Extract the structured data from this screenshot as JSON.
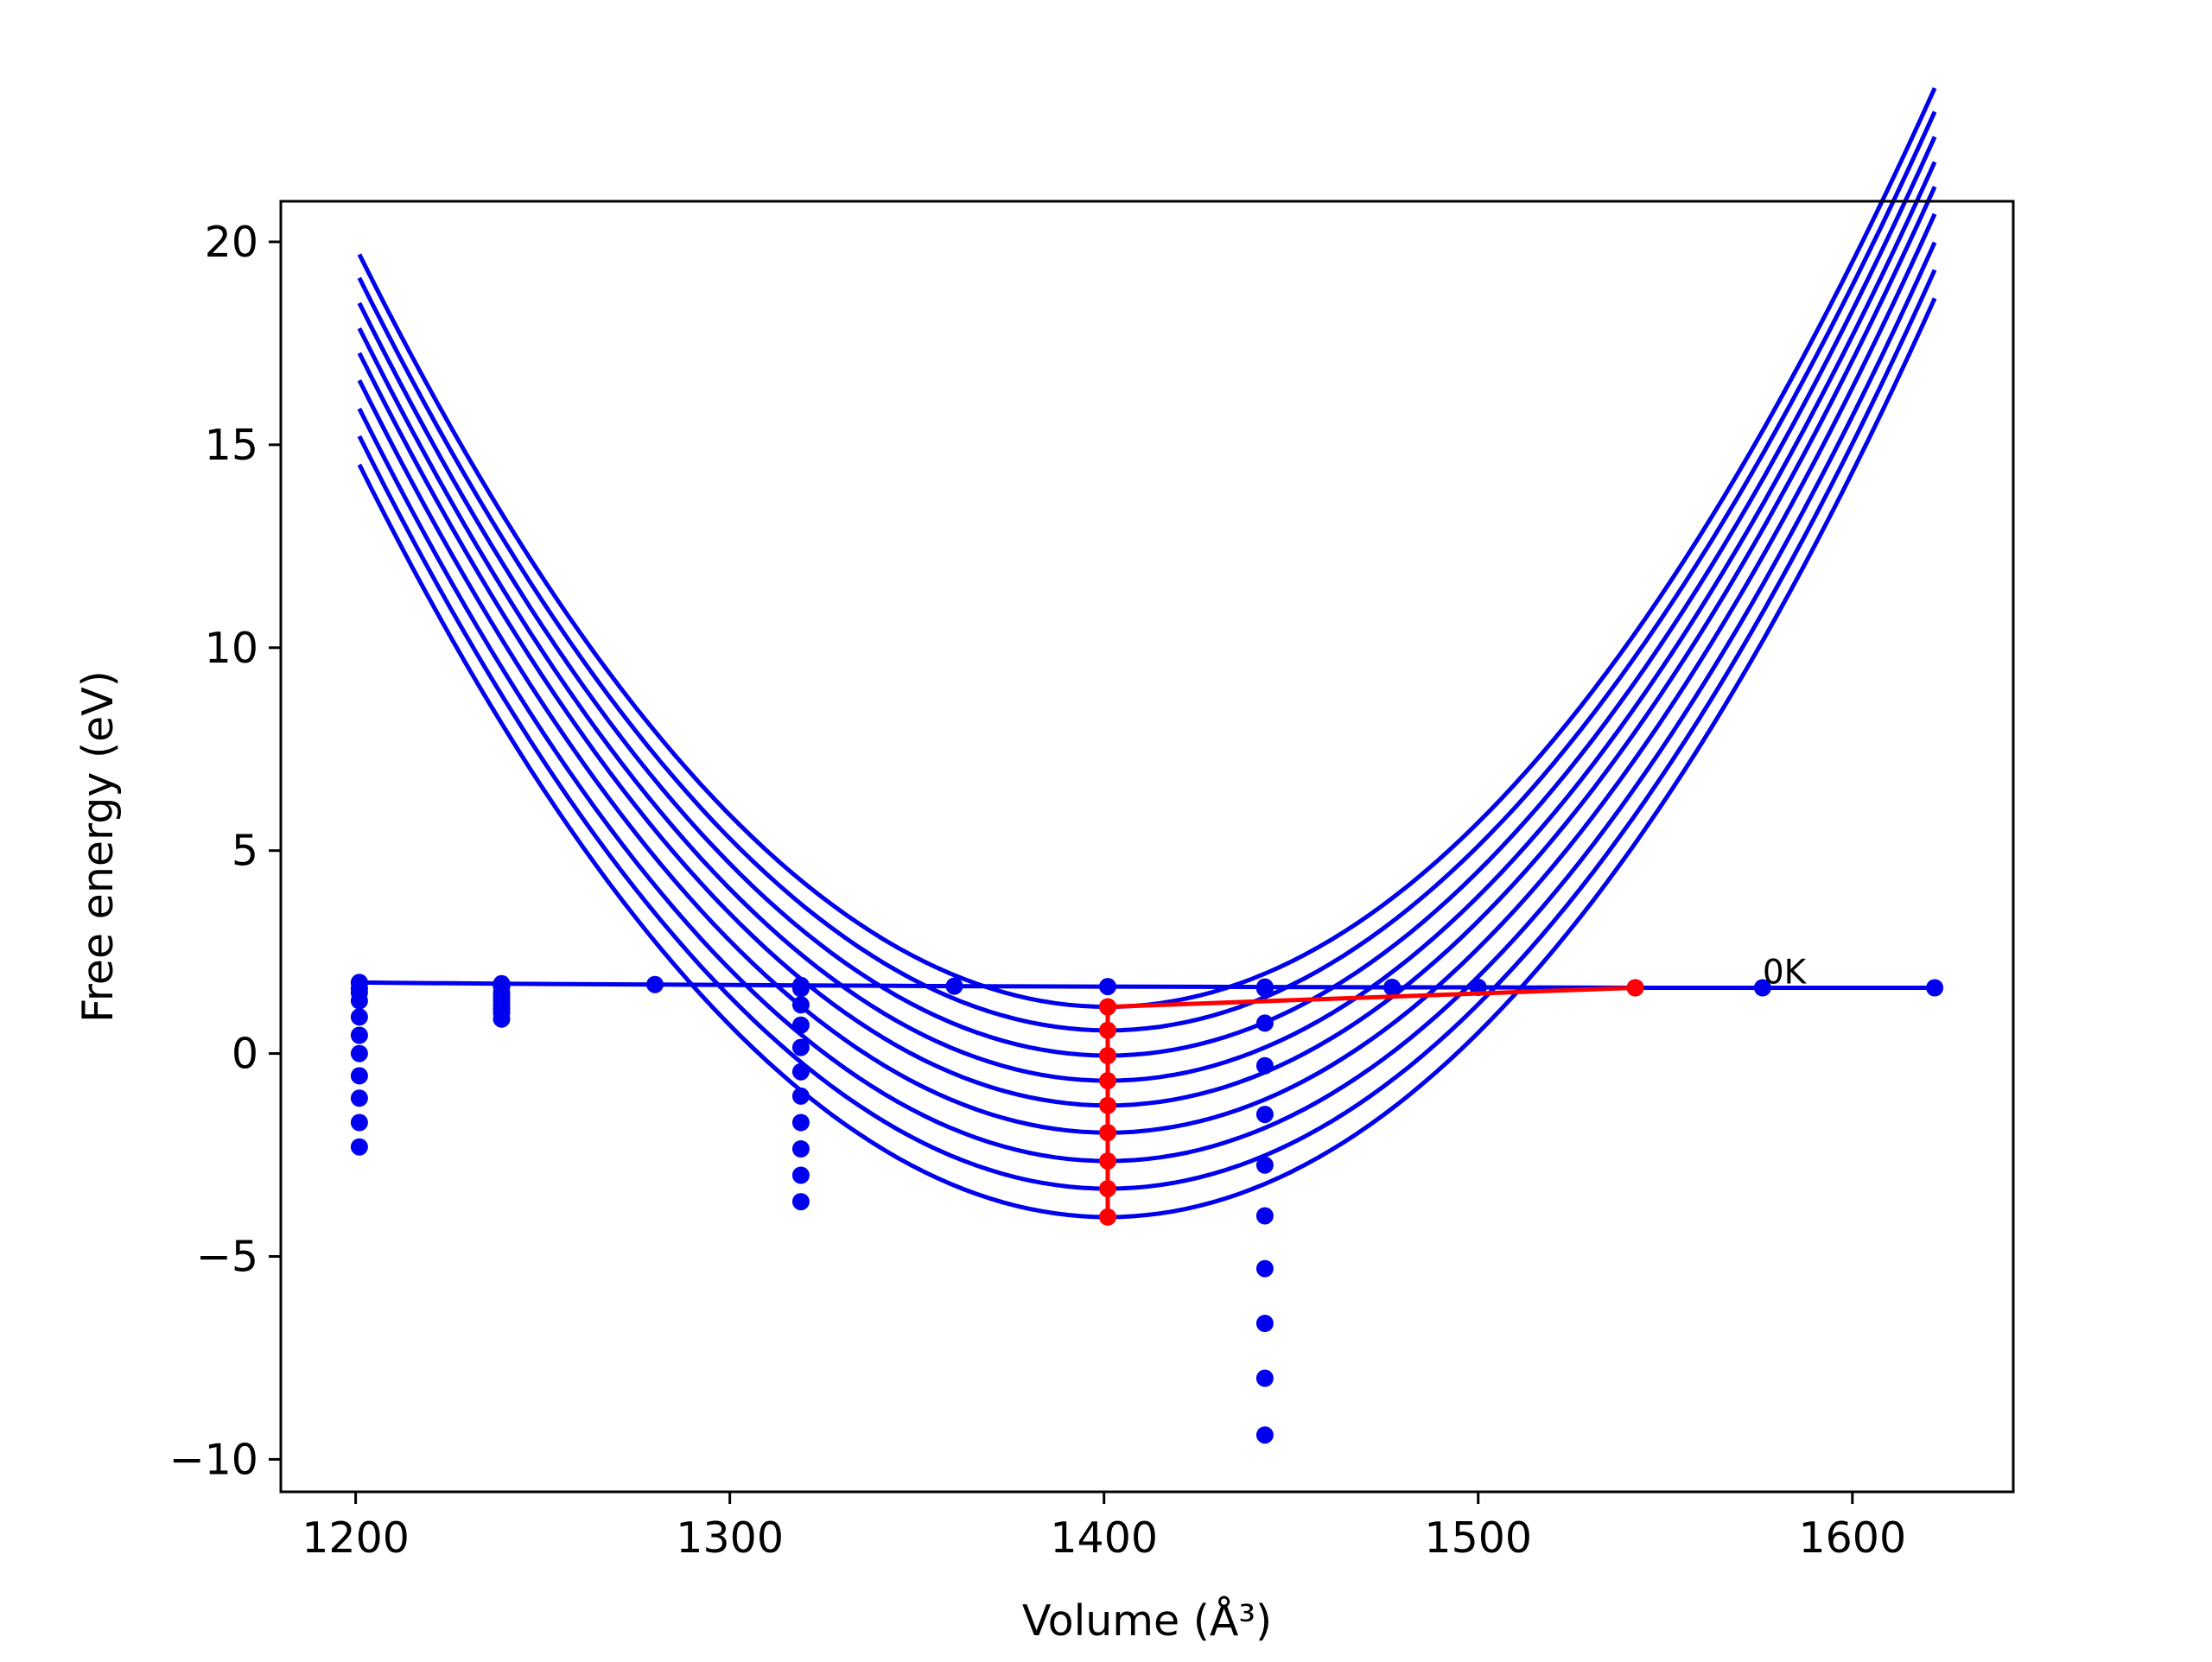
{
  "chart_data": {
    "type": "line",
    "title": "",
    "xlabel": "Volume (Å³)",
    "ylabel": "Free energy (eV)",
    "xlim": [
      1180,
      1643
    ],
    "ylim": [
      -10.8,
      21.0
    ],
    "xticks": [
      1200,
      1300,
      1400,
      1500,
      1600
    ],
    "yticks": [
      20,
      15,
      10,
      5,
      0,
      -5,
      -10
    ],
    "grid": false,
    "legend": "none",
    "annotations": [
      {
        "text": "0K",
        "x": 1576,
        "y": 1.6
      }
    ],
    "colors": {
      "curves": "#0000ee",
      "path": "#ff0000",
      "axes": "#000000"
    },
    "series": [
      {
        "style": "parabola",
        "xrange": [
          1201,
          1622
        ],
        "a": 0.0004635,
        "v0": 1401,
        "e0": 1.15
      },
      {
        "style": "parabola",
        "xrange": [
          1201,
          1622
        ],
        "a": 0.0004635,
        "v0": 1401,
        "e0": 0.57
      },
      {
        "style": "parabola",
        "xrange": [
          1201,
          1622
        ],
        "a": 0.0004635,
        "v0": 1401,
        "e0": -0.05
      },
      {
        "style": "parabola",
        "xrange": [
          1201,
          1622
        ],
        "a": 0.0004635,
        "v0": 1401,
        "e0": -0.67
      },
      {
        "style": "parabola",
        "xrange": [
          1201,
          1622
        ],
        "a": 0.0004635,
        "v0": 1401,
        "e0": -1.28
      },
      {
        "style": "parabola",
        "xrange": [
          1201,
          1622
        ],
        "a": 0.0004635,
        "v0": 1401,
        "e0": -1.95
      },
      {
        "style": "parabola",
        "xrange": [
          1201,
          1622
        ],
        "a": 0.0004635,
        "v0": 1401,
        "e0": -2.65
      },
      {
        "style": "parabola",
        "xrange": [
          1201,
          1622
        ],
        "a": 0.0004635,
        "v0": 1401,
        "e0": -3.33
      },
      {
        "style": "parabola",
        "xrange": [
          1201,
          1622
        ],
        "a": 0.0004635,
        "v0": 1401,
        "e0": -4.03
      },
      {
        "style": "line-markers",
        "color": "blue",
        "x": [
          1201,
          1239,
          1280,
          1319,
          1360,
          1401,
          1443,
          1477,
          1500,
          1542,
          1576,
          1622
        ],
        "y": [
          1.75,
          1.72,
          1.7,
          1.68,
          1.66,
          1.65,
          1.64,
          1.63,
          1.63,
          1.62,
          1.62,
          1.62
        ]
      },
      {
        "style": "markers",
        "color": "blue",
        "x": [
          1201,
          1201,
          1201,
          1201,
          1201,
          1201,
          1201,
          1201,
          1201,
          1201,
          1201
        ],
        "y": [
          1.6,
          1.3,
          0.9,
          0.45,
          0.0,
          -0.55,
          -1.1,
          -1.7,
          -2.3,
          1.75,
          1.5
        ]
      },
      {
        "style": "markers",
        "color": "blue",
        "x": [
          1239,
          1239,
          1239,
          1239,
          1239,
          1239,
          1239,
          1239
        ],
        "y": [
          1.65,
          1.5,
          1.4,
          1.3,
          1.2,
          1.1,
          1.0,
          0.85
        ]
      },
      {
        "style": "markers",
        "color": "blue",
        "x": [
          1319,
          1319,
          1319,
          1319,
          1319,
          1319,
          1319,
          1319,
          1319,
          1319
        ],
        "y": [
          1.2,
          0.7,
          0.15,
          -0.45,
          -1.05,
          -1.7,
          -2.35,
          -3.0,
          -3.65,
          1.6
        ]
      },
      {
        "style": "markers",
        "color": "blue",
        "x": [
          1443,
          1443,
          1443,
          1443,
          1443,
          1443,
          1443,
          1443,
          1443,
          1443
        ],
        "y": [
          0.75,
          -0.3,
          -1.5,
          -2.75,
          -4.0,
          -5.3,
          -6.65,
          -8.0,
          -9.4,
          1.6
        ]
      },
      {
        "style": "line-markers",
        "color": "red",
        "x": [
          1401,
          1401,
          1401,
          1401,
          1401,
          1401,
          1401,
          1401,
          1401
        ],
        "y": [
          -4.03,
          -3.33,
          -2.65,
          -1.95,
          -1.28,
          -0.67,
          -0.05,
          0.57,
          1.15
        ]
      },
      {
        "style": "line-markers",
        "color": "red",
        "x": [
          1401,
          1542
        ],
        "y": [
          1.15,
          1.62
        ]
      }
    ]
  }
}
